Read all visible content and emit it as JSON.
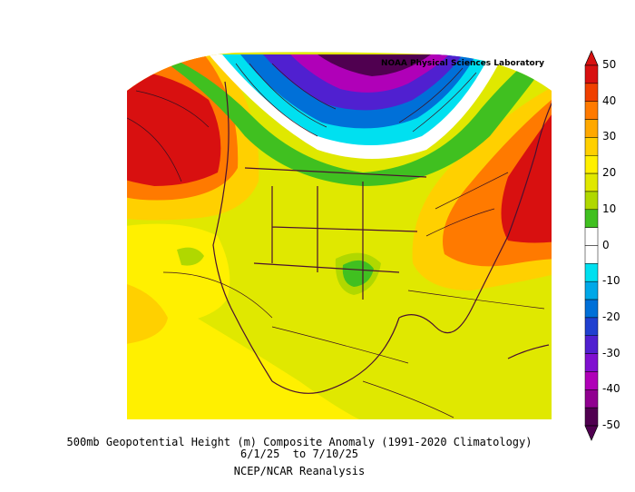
{
  "map": {
    "credit": "NOAA Physical Sciences Laboratory",
    "caption_line1": "500mb Geopotential Height (m) Composite Anomaly (1991-2020 Climatology)",
    "caption_line2": "6/1/25  to 7/10/25",
    "caption_line3": "NCEP/NCAR Reanalysis",
    "region": "North America (contiguous United States centered)",
    "variable": "500mb geopotential height anomaly",
    "units": "m"
  },
  "colorbar": {
    "ticks": [
      "50",
      "40",
      "30",
      "20",
      "10",
      "0",
      "-10",
      "-20",
      "-30",
      "-40",
      "-50"
    ],
    "bins": [
      {
        "range": "45 to 50",
        "color": "#d81010"
      },
      {
        "range": "40 to 45",
        "color": "#f04000"
      },
      {
        "range": "35 to 40",
        "color": "#ff7a00"
      },
      {
        "range": "30 to 35",
        "color": "#ffa800"
      },
      {
        "range": "25 to 30",
        "color": "#ffd000"
      },
      {
        "range": "20 to 25",
        "color": "#fff000"
      },
      {
        "range": "15 to 20",
        "color": "#e0e800"
      },
      {
        "range": "10 to 15",
        "color": "#b0d800"
      },
      {
        "range": "5 to 10",
        "color": "#40c020"
      },
      {
        "range": "0 to 5",
        "color": "#ffffff"
      },
      {
        "range": "-5 to 0",
        "color": "#ffffff"
      },
      {
        "range": "-10 to -5",
        "color": "#00e0f0"
      },
      {
        "range": "-15 to -10",
        "color": "#00a8e8"
      },
      {
        "range": "-20 to -15",
        "color": "#0070d8"
      },
      {
        "range": "-25 to -20",
        "color": "#2040d0"
      },
      {
        "range": "-30 to -25",
        "color": "#5020d0"
      },
      {
        "range": "-35 to -30",
        "color": "#8010d0"
      },
      {
        "range": "-40 to -35",
        "color": "#b000b8"
      },
      {
        "range": "-45 to -40",
        "color": "#900090"
      },
      {
        "range": "-50 to -45",
        "color": "#500050"
      }
    ]
  }
}
